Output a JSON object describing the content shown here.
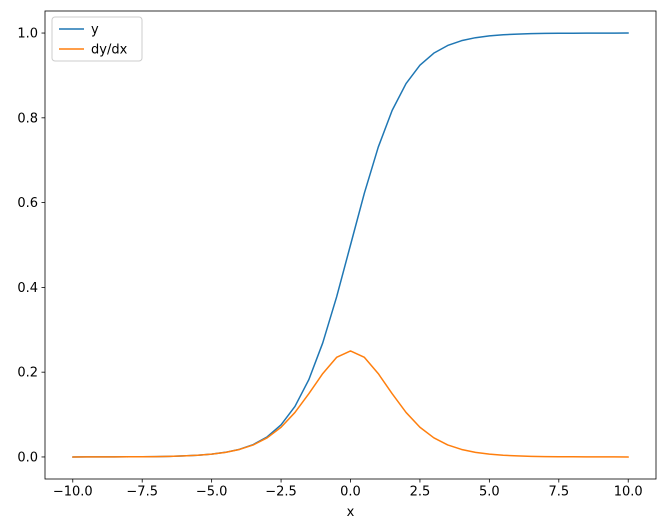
{
  "chart_data": {
    "type": "line",
    "title": "",
    "xlabel": "x",
    "ylabel": "",
    "grid": false,
    "xlim": [
      -11,
      11
    ],
    "ylim": [
      -0.052,
      1.052
    ],
    "xticks": [
      -10,
      -7.5,
      -5,
      -2.5,
      0,
      2.5,
      5,
      7.5,
      10
    ],
    "xtick_labels": [
      "−10.0",
      "−7.5",
      "−5.0",
      "−2.5",
      "0.0",
      "2.5",
      "5.0",
      "7.5",
      "10.0"
    ],
    "yticks": [
      0,
      0.2,
      0.4,
      0.6,
      0.8,
      1.0
    ],
    "ytick_labels": [
      "0.0",
      "0.2",
      "0.4",
      "0.6",
      "0.8",
      "1.0"
    ],
    "legend": {
      "position": "upper left",
      "entries": [
        {
          "label": "y",
          "color": "#1f77b4"
        },
        {
          "label": "dy/dx",
          "color": "#ff7f0e"
        }
      ]
    },
    "x": [
      -10,
      -9.5,
      -9,
      -8.5,
      -8,
      -7.5,
      -7,
      -6.5,
      -6,
      -5.5,
      -5,
      -4.5,
      -4,
      -3.5,
      -3,
      -2.5,
      -2,
      -1.5,
      -1,
      -0.5,
      0,
      0.5,
      1,
      1.5,
      2,
      2.5,
      3,
      3.5,
      4,
      4.5,
      5,
      5.5,
      6,
      6.5,
      7,
      7.5,
      8,
      8.5,
      9,
      9.5,
      10
    ],
    "series": [
      {
        "name": "y",
        "color": "#1f77b4",
        "values": [
          5e-05,
          7e-05,
          0.00012,
          0.0002,
          0.00034,
          0.00055,
          0.00091,
          0.0015,
          0.00247,
          0.00407,
          0.00669,
          0.01099,
          0.01799,
          0.02931,
          0.04743,
          0.07586,
          0.1192,
          0.18243,
          0.26894,
          0.37754,
          0.5,
          0.62246,
          0.73106,
          0.81757,
          0.8808,
          0.92414,
          0.95257,
          0.97069,
          0.98201,
          0.98901,
          0.99331,
          0.99593,
          0.99753,
          0.9985,
          0.99909,
          0.99945,
          0.99966,
          0.9998,
          0.99988,
          0.99993,
          0.99995
        ]
      },
      {
        "name": "dy/dx",
        "color": "#ff7f0e",
        "values": [
          5e-05,
          7e-05,
          0.00012,
          0.0002,
          0.00034,
          0.00055,
          0.00091,
          0.0015,
          0.00246,
          0.00405,
          0.00665,
          0.01087,
          0.01767,
          0.02845,
          0.04518,
          0.0701,
          0.10499,
          0.14914,
          0.19661,
          0.235,
          0.25,
          0.235,
          0.19661,
          0.14914,
          0.10499,
          0.0701,
          0.04518,
          0.02845,
          0.01767,
          0.01087,
          0.00665,
          0.00405,
          0.00246,
          0.0015,
          0.00091,
          0.00055,
          0.00034,
          0.0002,
          0.00012,
          7e-05,
          5e-05
        ]
      }
    ],
    "style": {
      "spine_color": "#000000",
      "background": "#ffffff",
      "legend_border": "#cccccc",
      "line_width": 1.5
    }
  }
}
